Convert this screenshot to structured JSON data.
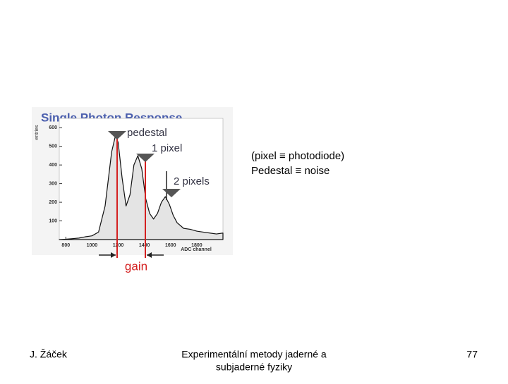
{
  "slide": {
    "notes": [
      "(pixel ≡ photodiode)",
      "Pedestal ≡ noise"
    ],
    "footer": {
      "author": "J. Žáček",
      "course": [
        "Experimentální metody jaderné a",
        "subjaderné fyziky"
      ],
      "page": "77"
    }
  },
  "chart_data": {
    "type": "area",
    "title": "Single Photon Response",
    "x_label": "ADC channel",
    "y_label": "entries",
    "x": [
      750,
      800,
      850,
      900,
      950,
      1000,
      1050,
      1100,
      1150,
      1180,
      1200,
      1230,
      1260,
      1290,
      1320,
      1350,
      1380,
      1410,
      1440,
      1470,
      1500,
      1530,
      1560,
      1590,
      1620,
      1650,
      1700,
      1750,
      1800,
      1850,
      1900,
      1950,
      2000
    ],
    "values": [
      0,
      2,
      5,
      8,
      15,
      20,
      40,
      180,
      470,
      560,
      520,
      330,
      180,
      240,
      400,
      450,
      380,
      220,
      140,
      110,
      140,
      200,
      230,
      190,
      130,
      90,
      60,
      55,
      45,
      40,
      35,
      30,
      35
    ],
    "color": "#e4e4e4",
    "xlim": [
      750,
      2000
    ],
    "xticks": [
      800,
      1000,
      1200,
      1400,
      1600,
      1800
    ],
    "ylim": [
      0,
      650
    ],
    "yticks": [
      100,
      200,
      300,
      400,
      500,
      600
    ],
    "annotations": [
      "pedestal",
      "1 pixel",
      "2 pixels",
      "gain"
    ]
  }
}
